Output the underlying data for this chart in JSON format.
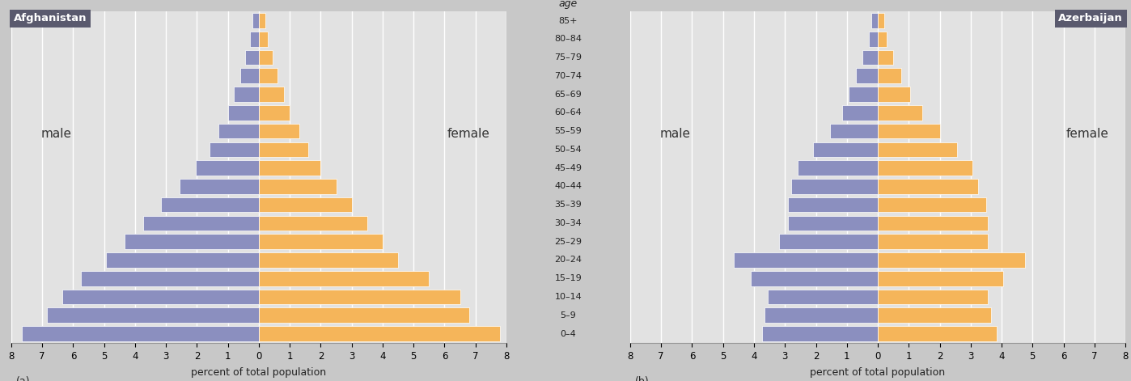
{
  "age_groups": [
    "85+",
    "80–84",
    "75–79",
    "70–74",
    "65–69",
    "60–64",
    "55–59",
    "50–54",
    "45–49",
    "40–44",
    "35–39",
    "30–34",
    "25–29",
    "20–24",
    "15–19",
    "10–14",
    "5–9",
    "0–4"
  ],
  "afg_male": [
    0.2,
    0.3,
    0.45,
    0.6,
    0.8,
    1.0,
    1.3,
    1.6,
    2.05,
    2.55,
    3.15,
    3.75,
    4.35,
    4.95,
    5.75,
    6.35,
    6.85,
    7.65
  ],
  "afg_female": [
    0.2,
    0.3,
    0.45,
    0.6,
    0.8,
    1.0,
    1.3,
    1.6,
    2.0,
    2.5,
    3.0,
    3.5,
    4.0,
    4.5,
    5.5,
    6.5,
    6.8,
    7.8
  ],
  "azb_male": [
    0.2,
    0.3,
    0.5,
    0.7,
    0.95,
    1.15,
    1.55,
    2.1,
    2.6,
    2.8,
    2.9,
    2.9,
    3.2,
    4.65,
    4.1,
    3.55,
    3.65,
    3.75
  ],
  "azb_female": [
    0.2,
    0.3,
    0.5,
    0.75,
    1.05,
    1.45,
    2.0,
    2.55,
    3.05,
    3.25,
    3.5,
    3.55,
    3.55,
    4.75,
    4.05,
    3.55,
    3.65,
    3.85
  ],
  "male_color": "#8b8fbf",
  "female_color": "#f5b55a",
  "bg_color": "#e2e2e2",
  "fig_bg": "#c8c8c8",
  "title_bg": "#5a5a6e",
  "title_color": "#ffffff",
  "xlim": 8,
  "xlabel": "percent of total population",
  "bar_height": 0.82,
  "afg_label": "(a)",
  "azb_label": "(b)"
}
